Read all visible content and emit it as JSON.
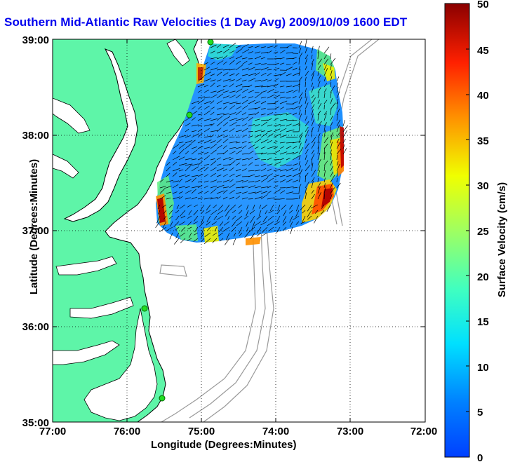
{
  "title": "Southern Mid-Atlantic Raw Velocities (1 Day Avg) 2009/10/09 1600 EDT",
  "xlabel": "Longitude (Degrees:Minutes)",
  "ylabel": "Latitude (Degrees:Minutes)",
  "x_ticks": [
    "77:00",
    "76:00",
    "75:00",
    "74:00",
    "73:00",
    "72:00"
  ],
  "y_ticks": [
    "39:00",
    "38:00",
    "37:00",
    "36:00",
    "35:00"
  ],
  "colorbar": {
    "label": "Surface Velocity (cm/s)",
    "ticks": [
      "0",
      "5",
      "10",
      "15",
      "20",
      "25",
      "30",
      "35",
      "40",
      "45",
      "50"
    ],
    "range": [
      0,
      50
    ]
  },
  "colors": {
    "land": "#5ef5a8",
    "water": "#ffffff",
    "coast": "#000000",
    "bathymetry": "#999999",
    "station": "#22dd22",
    "title": "#0000ee"
  },
  "map_extent": {
    "lon": [
      -77,
      -72
    ],
    "lat": [
      35,
      39
    ]
  }
}
